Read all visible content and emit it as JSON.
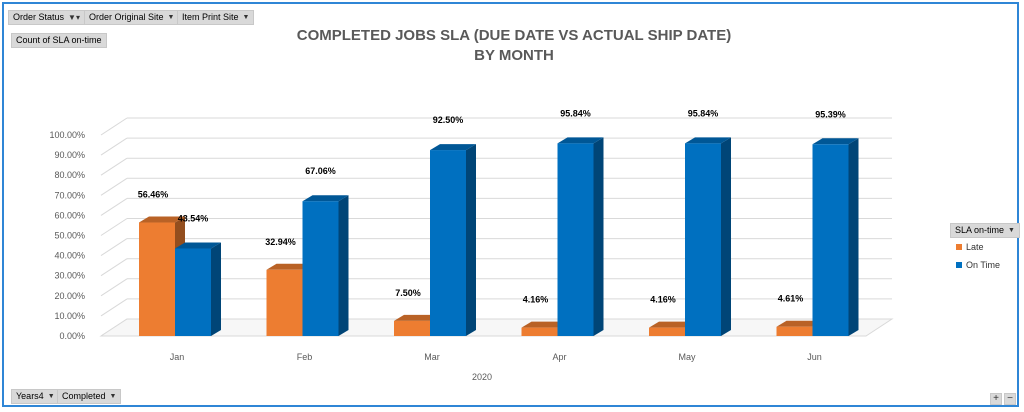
{
  "filters": {
    "order_status": "Order Status",
    "order_original_site": "Order Original Site",
    "item_print_site": "Item Print Site",
    "value_field": "Count of SLA on-time",
    "years": "Years4",
    "status": "Completed"
  },
  "legend": {
    "title": "SLA on-time"
  },
  "zoom": {
    "plus": "+",
    "minus": "−"
  },
  "colors": {
    "late": "#ed7d31",
    "on_time": "#0070c0"
  },
  "chart_data": {
    "type": "bar",
    "style": "3d-clustered-column",
    "title": "COMPLETED JOBS SLA (DUE DATE VS ACTUAL SHIP DATE)",
    "subtitle": "BY MONTH",
    "categories": [
      "Jan",
      "Feb",
      "Mar",
      "Apr",
      "May",
      "Jun"
    ],
    "xlabel": "2020",
    "ylabel": "",
    "ylim": [
      0,
      100
    ],
    "yticks": [
      "0.00%",
      "10.00%",
      "20.00%",
      "30.00%",
      "40.00%",
      "50.00%",
      "60.00%",
      "70.00%",
      "80.00%",
      "90.00%",
      "100.00%"
    ],
    "grid": true,
    "legend_position": "right",
    "series": [
      {
        "name": "Late",
        "values": [
          56.46,
          32.94,
          7.5,
          4.16,
          4.16,
          4.61
        ],
        "labels": [
          "56.46%",
          "32.94%",
          "7.50%",
          "4.16%",
          "4.16%",
          "4.61%"
        ]
      },
      {
        "name": "On Time",
        "values": [
          43.54,
          67.06,
          92.5,
          95.84,
          95.84,
          95.39
        ],
        "labels": [
          "43.54%",
          "67.06%",
          "92.50%",
          "95.84%",
          "95.84%",
          "95.39%"
        ]
      }
    ]
  }
}
